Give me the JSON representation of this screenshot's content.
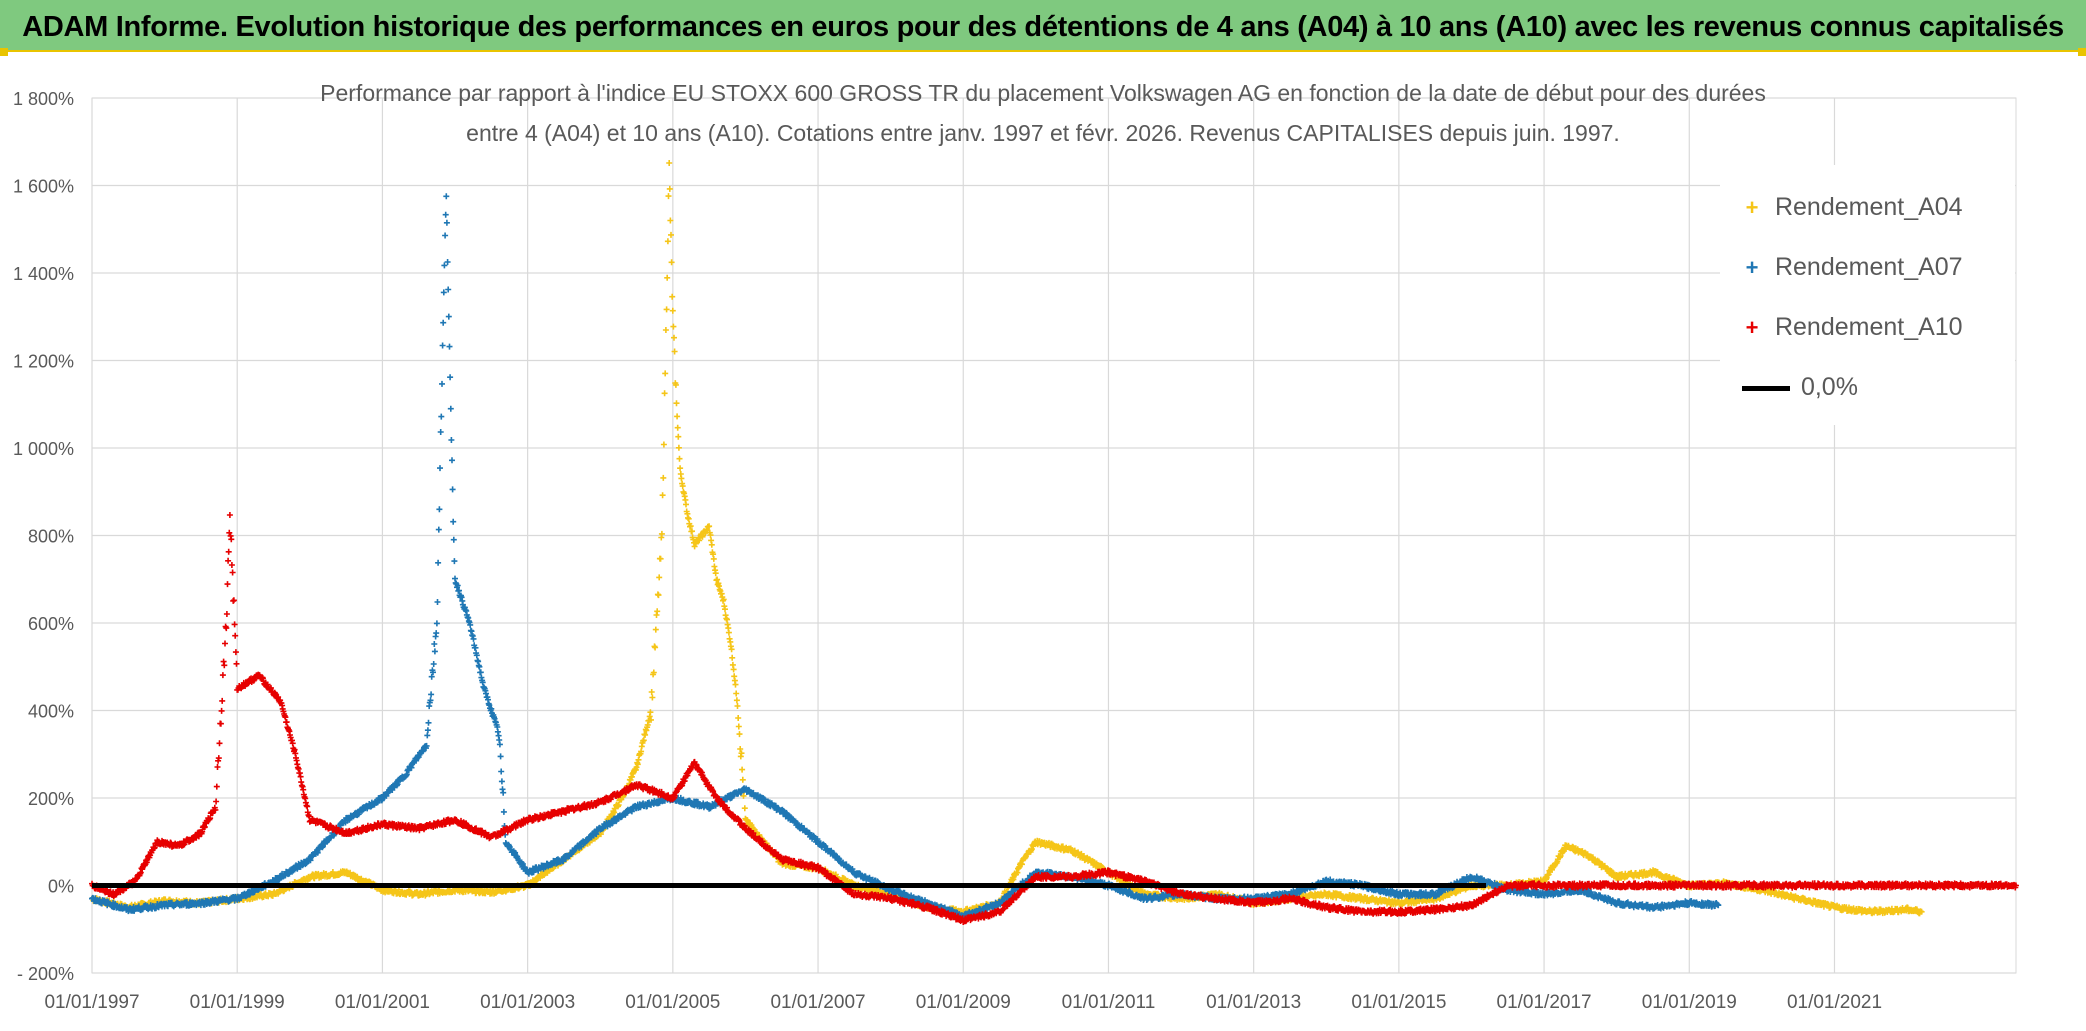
{
  "header": {
    "title": "ADAM Informe. Evolution historique des performances en euros pour des détentions de 4 ans (A04) à 10 ans (A10) avec les revenus connus capitalisés"
  },
  "chart_data": {
    "type": "scatter",
    "title_line1": "Performance par rapport à l'indice EU STOXX 600 GROSS TR  du placement Volkswagen AG en fonction de la date de début pour des durées",
    "title_line2": "entre 4 (A04) et 10 ans (A10). Cotations entre janv. 1997 et févr. 2026. Revenus CAPITALISES depuis juin. 1997.",
    "x_ticks": [
      "01/01/1997",
      "01/01/1999",
      "01/01/2001",
      "01/01/2003",
      "01/01/2005",
      "01/01/2007",
      "01/01/2009",
      "01/01/2011",
      "01/01/2013",
      "01/01/2015",
      "01/01/2017",
      "01/01/2019",
      "01/01/2021"
    ],
    "y_ticks": [
      "- 200%",
      "0%",
      "200%",
      "400%",
      "600%",
      "800%",
      "1 000%",
      "1 200%",
      "1 400%",
      "1 600%",
      "1 800%"
    ],
    "xlim": [
      1997.0,
      2023.5
    ],
    "ylim": [
      -200,
      1800
    ],
    "grid": true,
    "legend_position": "top-right",
    "baseline": {
      "name": "0,0%",
      "value": 0,
      "color": "#000000"
    },
    "series": [
      {
        "name": "Rendement_A04",
        "color": "#f5c518",
        "points": [
          [
            1997.0,
            -30
          ],
          [
            1997.5,
            -50
          ],
          [
            1998.0,
            -35
          ],
          [
            1998.5,
            -40
          ],
          [
            1999.0,
            -30
          ],
          [
            1999.5,
            -20
          ],
          [
            2000.0,
            20
          ],
          [
            2000.5,
            30
          ],
          [
            2001.0,
            -10
          ],
          [
            2001.5,
            -20
          ],
          [
            2002.0,
            -10
          ],
          [
            2002.5,
            -15
          ],
          [
            2003.0,
            0
          ],
          [
            2003.5,
            60
          ],
          [
            2004.0,
            120
          ],
          [
            2004.3,
            200
          ],
          [
            2004.5,
            270
          ],
          [
            2004.7,
            400
          ],
          [
            2004.85,
            800
          ],
          [
            2004.95,
            1640
          ],
          [
            2005.0,
            1300
          ],
          [
            2005.05,
            1100
          ],
          [
            2005.1,
            950
          ],
          [
            2005.2,
            850
          ],
          [
            2005.3,
            780
          ],
          [
            2005.4,
            800
          ],
          [
            2005.5,
            820
          ],
          [
            2005.6,
            700
          ],
          [
            2005.7,
            650
          ],
          [
            2005.8,
            550
          ],
          [
            2005.9,
            400
          ],
          [
            2006.0,
            150
          ],
          [
            2006.5,
            50
          ],
          [
            2007.0,
            40
          ],
          [
            2007.5,
            0
          ],
          [
            2008.0,
            -20
          ],
          [
            2008.5,
            -50
          ],
          [
            2009.0,
            -60
          ],
          [
            2009.5,
            -40
          ],
          [
            2009.8,
            50
          ],
          [
            2010.0,
            100
          ],
          [
            2010.5,
            80
          ],
          [
            2011.0,
            30
          ],
          [
            2011.5,
            -20
          ],
          [
            2012.0,
            -30
          ],
          [
            2012.5,
            -20
          ],
          [
            2013.0,
            -40
          ],
          [
            2013.5,
            -30
          ],
          [
            2014.0,
            -20
          ],
          [
            2014.5,
            -30
          ],
          [
            2015.0,
            -40
          ],
          [
            2015.5,
            -30
          ],
          [
            2016.0,
            0
          ],
          [
            2016.5,
            0
          ],
          [
            2017.0,
            10
          ],
          [
            2017.3,
            90
          ],
          [
            2017.6,
            70
          ],
          [
            2018.0,
            20
          ],
          [
            2018.5,
            30
          ],
          [
            2019.0,
            0
          ],
          [
            2019.5,
            5
          ],
          [
            2020.0,
            -10
          ],
          [
            2020.5,
            -30
          ],
          [
            2021.0,
            -50
          ],
          [
            2021.5,
            -60
          ],
          [
            2022.0,
            -55
          ],
          [
            2022.2,
            -60
          ]
        ]
      },
      {
        "name": "Rendement_A07",
        "color": "#1f77b4",
        "points": [
          [
            1997.0,
            -30
          ],
          [
            1997.5,
            -55
          ],
          [
            1998.0,
            -45
          ],
          [
            1998.5,
            -40
          ],
          [
            1999.0,
            -30
          ],
          [
            1999.5,
            10
          ],
          [
            2000.0,
            60
          ],
          [
            2000.5,
            150
          ],
          [
            2001.0,
            200
          ],
          [
            2001.3,
            250
          ],
          [
            2001.6,
            320
          ],
          [
            2001.75,
            600
          ],
          [
            2001.82,
            1160
          ],
          [
            2001.88,
            1595
          ],
          [
            2001.95,
            1000
          ],
          [
            2002.0,
            700
          ],
          [
            2002.2,
            600
          ],
          [
            2002.4,
            450
          ],
          [
            2002.6,
            350
          ],
          [
            2002.7,
            100
          ],
          [
            2003.0,
            30
          ],
          [
            2003.5,
            60
          ],
          [
            2004.0,
            130
          ],
          [
            2004.5,
            180
          ],
          [
            2005.0,
            200
          ],
          [
            2005.5,
            180
          ],
          [
            2006.0,
            220
          ],
          [
            2006.5,
            170
          ],
          [
            2007.0,
            100
          ],
          [
            2007.5,
            30
          ],
          [
            2008.0,
            -10
          ],
          [
            2008.5,
            -40
          ],
          [
            2009.0,
            -70
          ],
          [
            2009.5,
            -40
          ],
          [
            2010.0,
            30
          ],
          [
            2010.5,
            20
          ],
          [
            2011.0,
            0
          ],
          [
            2011.5,
            -30
          ],
          [
            2012.0,
            -20
          ],
          [
            2012.5,
            -30
          ],
          [
            2013.0,
            -30
          ],
          [
            2013.5,
            -20
          ],
          [
            2014.0,
            10
          ],
          [
            2014.5,
            0
          ],
          [
            2015.0,
            -20
          ],
          [
            2015.5,
            -20
          ],
          [
            2016.0,
            20
          ],
          [
            2016.5,
            -10
          ],
          [
            2017.0,
            -20
          ],
          [
            2017.5,
            -10
          ],
          [
            2018.0,
            -40
          ],
          [
            2018.5,
            -50
          ],
          [
            2019.0,
            -40
          ],
          [
            2019.4,
            -45
          ]
        ]
      },
      {
        "name": "Rendement_A10",
        "color": "#e60000",
        "points": [
          [
            1997.0,
            0
          ],
          [
            1997.3,
            -20
          ],
          [
            1997.6,
            10
          ],
          [
            1997.9,
            100
          ],
          [
            1998.2,
            90
          ],
          [
            1998.5,
            120
          ],
          [
            1998.7,
            180
          ],
          [
            1998.85,
            600
          ],
          [
            1998.9,
            850
          ],
          [
            1999.0,
            450
          ],
          [
            1999.3,
            480
          ],
          [
            1999.6,
            420
          ],
          [
            1999.8,
            300
          ],
          [
            2000.0,
            150
          ],
          [
            2000.5,
            120
          ],
          [
            2001.0,
            140
          ],
          [
            2001.5,
            130
          ],
          [
            2002.0,
            150
          ],
          [
            2002.5,
            110
          ],
          [
            2003.0,
            150
          ],
          [
            2003.5,
            170
          ],
          [
            2004.0,
            190
          ],
          [
            2004.5,
            230
          ],
          [
            2005.0,
            200
          ],
          [
            2005.3,
            280
          ],
          [
            2005.6,
            200
          ],
          [
            2006.0,
            130
          ],
          [
            2006.5,
            60
          ],
          [
            2007.0,
            40
          ],
          [
            2007.5,
            -20
          ],
          [
            2008.0,
            -30
          ],
          [
            2008.5,
            -50
          ],
          [
            2009.0,
            -80
          ],
          [
            2009.5,
            -60
          ],
          [
            2010.0,
            20
          ],
          [
            2010.5,
            20
          ],
          [
            2011.0,
            30
          ],
          [
            2011.5,
            10
          ],
          [
            2012.0,
            -20
          ],
          [
            2012.5,
            -30
          ],
          [
            2013.0,
            -40
          ],
          [
            2013.5,
            -30
          ],
          [
            2014.0,
            -50
          ],
          [
            2014.5,
            -60
          ],
          [
            2015.0,
            -60
          ],
          [
            2015.5,
            -55
          ],
          [
            2016.0,
            -45
          ],
          [
            2016.5,
            0
          ],
          [
            2017.0,
            0
          ],
          [
            2018.0,
            0
          ],
          [
            2019.0,
            0
          ],
          [
            2020.0,
            0
          ],
          [
            2021.0,
            0
          ],
          [
            2022.0,
            0
          ],
          [
            2023.0,
            0
          ],
          [
            2023.5,
            0
          ]
        ]
      }
    ]
  }
}
